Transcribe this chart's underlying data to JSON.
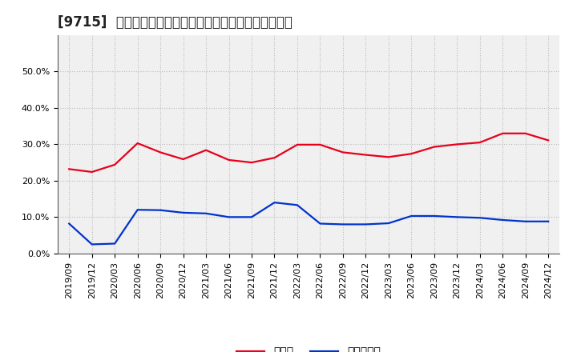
{
  "title": "[9715]  現預金、有利子負債の総資産に対する比率の推移",
  "x_labels": [
    "2019/09",
    "2019/12",
    "2020/03",
    "2020/06",
    "2020/09",
    "2020/12",
    "2021/03",
    "2021/06",
    "2021/09",
    "2021/12",
    "2022/03",
    "2022/06",
    "2022/09",
    "2022/12",
    "2023/03",
    "2023/06",
    "2023/09",
    "2023/12",
    "2024/03",
    "2024/06",
    "2024/09",
    "2024/12"
  ],
  "cash_ratio": [
    0.232,
    0.224,
    0.244,
    0.303,
    0.278,
    0.259,
    0.284,
    0.257,
    0.25,
    0.263,
    0.299,
    0.299,
    0.278,
    0.271,
    0.265,
    0.274,
    0.293,
    0.3,
    0.305,
    0.33,
    0.33,
    0.311
  ],
  "debt_ratio": [
    0.082,
    0.025,
    0.027,
    0.12,
    0.119,
    0.112,
    0.11,
    0.1,
    0.1,
    0.14,
    0.133,
    0.082,
    0.08,
    0.08,
    0.083,
    0.103,
    0.103,
    0.1,
    0.098,
    0.092,
    0.088,
    0.088
  ],
  "cash_color": "#e8001c",
  "debt_color": "#0033cc",
  "background_color": "#ffffff",
  "plot_bg_color": "#f0f0f0",
  "grid_color": "#bbbbbb",
  "ylim": [
    0.0,
    0.6
  ],
  "yticks": [
    0.0,
    0.1,
    0.2,
    0.3,
    0.4,
    0.5
  ],
  "legend_cash": "現預金",
  "legend_debt": "有利子負債",
  "title_fontsize": 12,
  "legend_fontsize": 10,
  "tick_fontsize": 8
}
